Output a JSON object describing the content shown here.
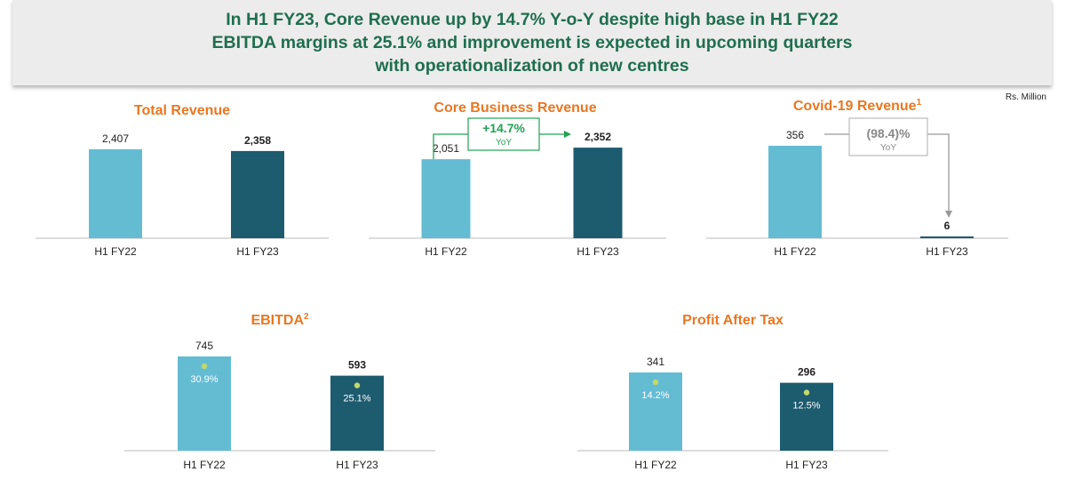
{
  "headline": {
    "line1": "In H1 FY23, Core Revenue up by 14.7% Y-o-Y despite high base in H1 FY22",
    "line2": "EBITDA margins at 25.1% and improvement is expected in upcoming quarters",
    "line3": "with operationalization of new centres"
  },
  "unit_label": "Rs. Million",
  "colors": {
    "light_bar": "#64bcd3",
    "dark_bar": "#1d5b6f",
    "title": "#e87722",
    "green": "#21a355",
    "dot": "#c3d96a"
  },
  "chart_data": [
    {
      "type": "bar",
      "title": "Total Revenue",
      "categories": [
        "H1 FY22",
        "H1 FY23"
      ],
      "values": [
        2407,
        2358
      ],
      "value_labels": [
        "2,407",
        "2,358"
      ]
    },
    {
      "type": "bar",
      "title": "Core Business Revenue",
      "categories": [
        "H1 FY22",
        "H1 FY23"
      ],
      "values": [
        2051,
        2352
      ],
      "value_labels": [
        "2,051",
        "2,352"
      ],
      "annotation": {
        "value": "+14.7%",
        "sub": "YoY"
      }
    },
    {
      "type": "bar",
      "title": "Covid-19 Revenue",
      "title_sup": "1",
      "categories": [
        "H1 FY22",
        "H1 FY23"
      ],
      "values": [
        356,
        6
      ],
      "value_labels": [
        "356",
        "6"
      ],
      "annotation": {
        "value": "(98.4)%",
        "sub": "YoY"
      }
    },
    {
      "type": "bar",
      "title": "EBITDA",
      "title_sup": "2",
      "categories": [
        "H1 FY22",
        "H1 FY23"
      ],
      "values": [
        745,
        593
      ],
      "value_labels": [
        "745",
        "593"
      ],
      "margins": [
        "30.9%",
        "25.1%"
      ]
    },
    {
      "type": "bar",
      "title": "Profit After Tax",
      "categories": [
        "H1 FY22",
        "H1 FY23"
      ],
      "values": [
        341,
        296
      ],
      "value_labels": [
        "341",
        "296"
      ],
      "margins": [
        "14.2%",
        "12.5%"
      ]
    }
  ]
}
